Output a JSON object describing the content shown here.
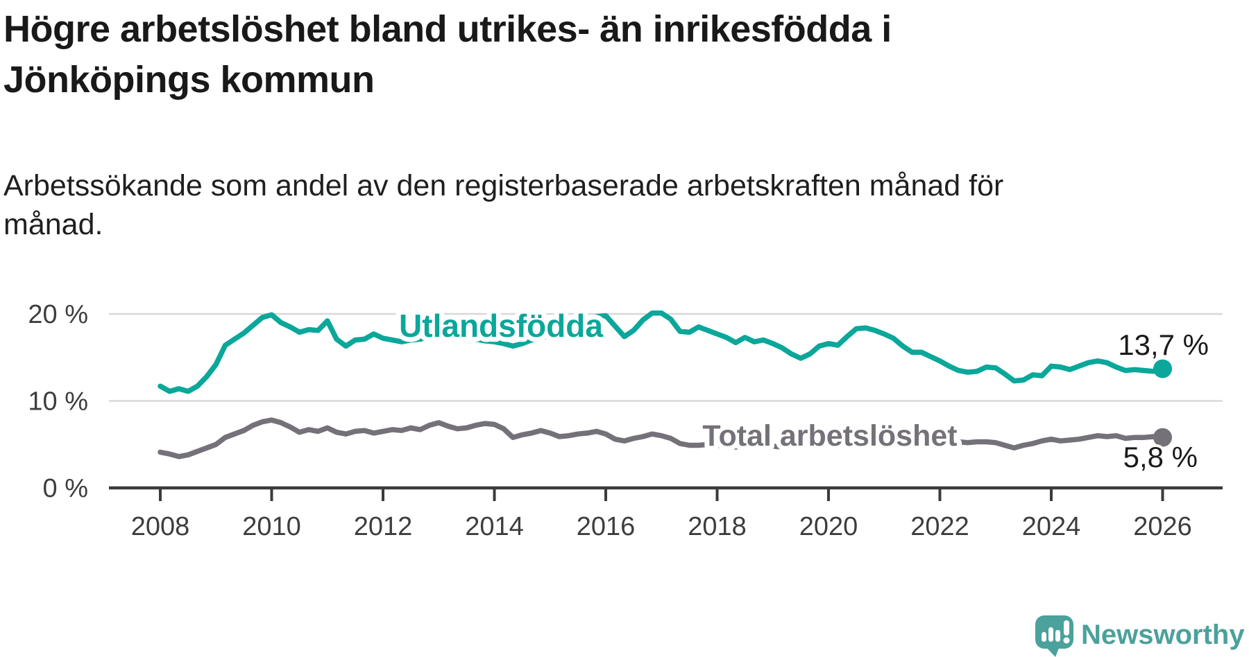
{
  "header": {
    "title": "Högre arbetslöshet bland utrikes- än inrikesfödda i\nJönköpings kommun",
    "subtitle": "Arbetssökande som andel av den registerbaserade arbetskraften månad för\nmånad."
  },
  "chart_data": {
    "type": "line",
    "title": "Högre arbetslöshet bland utrikes- än inrikesfödda i Jönköpings kommun",
    "subtitle": "Arbetssökande som andel av den registerbaserade arbetskraften månad för månad.",
    "xlabel": "",
    "ylabel": "",
    "x_start_year": 2008.0,
    "x_step_years": 0.1666667,
    "x_end_year": 2026.0,
    "ylim": [
      0,
      21
    ],
    "grid": "horizontal-only",
    "legend_position": "inline-labels-on-lines",
    "yticks": [
      {
        "value": 0,
        "label": "0 %"
      },
      {
        "value": 10,
        "label": "10 %"
      },
      {
        "value": 20,
        "label": "20 %"
      }
    ],
    "xticks": [
      {
        "value": 2008,
        "label": "2008"
      },
      {
        "value": 2010,
        "label": "2010"
      },
      {
        "value": 2012,
        "label": "2012"
      },
      {
        "value": 2014,
        "label": "2014"
      },
      {
        "value": 2016,
        "label": "2016"
      },
      {
        "value": 2018,
        "label": "2018"
      },
      {
        "value": 2020,
        "label": "2020"
      },
      {
        "value": 2022,
        "label": "2022"
      },
      {
        "value": 2024,
        "label": "2024"
      },
      {
        "value": 2026,
        "label": "2026"
      }
    ],
    "series": [
      {
        "name": "Utlandsfödda",
        "color": "#0aa79a",
        "end_value": 13.7,
        "end_label": "13,7 %",
        "values": [
          11.7,
          11.1,
          11.4,
          11.1,
          11.7,
          12.8,
          14.2,
          16.4,
          17.1,
          17.8,
          18.7,
          19.6,
          19.9,
          19.0,
          18.5,
          17.9,
          18.2,
          18.1,
          19.2,
          17.1,
          16.3,
          17.0,
          17.1,
          17.7,
          17.2,
          17.0,
          16.8,
          17.0,
          17.1,
          17.4,
          17.7,
          18.0,
          17.7,
          17.4,
          17.1,
          16.9,
          16.8,
          16.6,
          16.3,
          16.6,
          17.0,
          17.3,
          17.5,
          17.8,
          18.2,
          18.6,
          19.1,
          19.7,
          19.8,
          18.6,
          17.4,
          18.1,
          19.3,
          20.1,
          20.1,
          19.4,
          18.0,
          17.9,
          18.5,
          18.1,
          17.7,
          17.3,
          16.7,
          17.3,
          16.8,
          17.0,
          16.6,
          16.1,
          15.4,
          14.9,
          15.4,
          16.3,
          16.6,
          16.4,
          17.4,
          18.3,
          18.4,
          18.1,
          17.7,
          17.2,
          16.3,
          15.6,
          15.6,
          15.1,
          14.6,
          14.0,
          13.5,
          13.3,
          13.4,
          13.9,
          13.8,
          13.1,
          12.3,
          12.4,
          13.0,
          12.9,
          14.0,
          13.9,
          13.6,
          14.0,
          14.4,
          14.6,
          14.4,
          13.9,
          13.5,
          13.6,
          13.5,
          13.4,
          13.7
        ]
      },
      {
        "name": "Total arbetslöshet",
        "color": "#757179",
        "end_value": 5.8,
        "end_label": "5,8 %",
        "values": [
          4.1,
          3.9,
          3.6,
          3.8,
          4.2,
          4.6,
          5.0,
          5.8,
          6.2,
          6.6,
          7.2,
          7.6,
          7.8,
          7.5,
          7.0,
          6.4,
          6.7,
          6.5,
          6.9,
          6.4,
          6.2,
          6.5,
          6.6,
          6.3,
          6.5,
          6.7,
          6.6,
          6.9,
          6.7,
          7.2,
          7.5,
          7.1,
          6.8,
          6.9,
          7.2,
          7.4,
          7.3,
          6.8,
          5.8,
          6.1,
          6.3,
          6.6,
          6.3,
          5.9,
          6.0,
          6.2,
          6.3,
          6.5,
          6.2,
          5.6,
          5.4,
          5.7,
          5.9,
          6.2,
          6.0,
          5.7,
          5.1,
          4.9,
          4.9,
          5.0,
          4.9,
          4.8,
          4.7,
          4.8,
          4.8,
          4.9,
          4.8,
          4.7,
          4.7,
          4.8,
          4.9,
          5.0,
          5.2,
          5.6,
          6.1,
          6.3,
          6.3,
          6.3,
          6.2,
          6.1,
          6.0,
          5.9,
          5.8,
          5.6,
          5.5,
          5.4,
          5.3,
          5.2,
          5.3,
          5.3,
          5.2,
          4.9,
          4.6,
          4.9,
          5.1,
          5.4,
          5.6,
          5.4,
          5.5,
          5.6,
          5.8,
          6.0,
          5.9,
          6.0,
          5.7,
          5.8,
          5.8,
          5.9,
          5.8
        ]
      }
    ]
  },
  "footer": {
    "brand": "Newsworthy",
    "brand_color": "#4ba19b",
    "logo_icon": "speech-bubble-bar-chart-icon"
  },
  "colors": {
    "background": "#ffffff",
    "title_text": "#191919",
    "axis_text": "#3d3d3d",
    "axis_line": "#3b3b3b",
    "gridline": "#d8d8d8",
    "series_foreign_born": "#0aa79a",
    "series_total": "#757179"
  }
}
